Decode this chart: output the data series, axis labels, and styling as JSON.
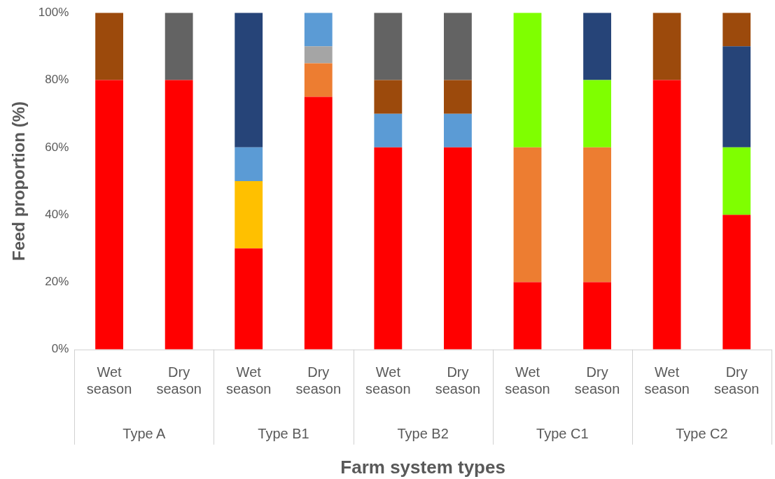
{
  "chart_data": {
    "type": "bar",
    "stacked": true,
    "xlabel": "Farm system types",
    "ylabel": "Feed proportion (%)",
    "categories": [
      "Wet season",
      "Dry season",
      "Wet season",
      "Dry season",
      "Wet season",
      "Dry season",
      "Wet season",
      "Dry season",
      "Wet season",
      "Dry season"
    ],
    "annotations": [
      "Type A",
      "Type B1",
      "Type B2",
      "Type C1",
      "Type C2"
    ],
    "series": [
      {
        "color": "#ff0000",
        "values": [
          80,
          80,
          30,
          75,
          60,
          60,
          20,
          20,
          80,
          40
        ]
      },
      {
        "color": "#ed7d31",
        "values": [
          null,
          null,
          null,
          10,
          null,
          null,
          40,
          40,
          null,
          null
        ]
      },
      {
        "color": "#ffc000",
        "values": [
          null,
          null,
          20,
          null,
          null,
          null,
          null,
          null,
          null,
          null
        ]
      },
      {
        "color": "#a5a5a5",
        "values": [
          null,
          null,
          null,
          5,
          null,
          null,
          null,
          null,
          null,
          null
        ]
      },
      {
        "color": "#5b9bd5",
        "values": [
          null,
          null,
          10,
          10,
          10,
          10,
          null,
          null,
          null,
          null
        ]
      },
      {
        "color": "#7fff00",
        "values": [
          null,
          null,
          null,
          null,
          null,
          null,
          40,
          20,
          null,
          20
        ]
      },
      {
        "color": "#264478",
        "values": [
          null,
          null,
          40,
          null,
          null,
          null,
          null,
          20,
          null,
          30
        ]
      },
      {
        "color": "#9c4a0c",
        "values": [
          20,
          null,
          null,
          null,
          10,
          10,
          null,
          null,
          20,
          10
        ]
      },
      {
        "color": "#636363",
        "values": [
          null,
          20,
          null,
          null,
          20,
          20,
          null,
          null,
          null,
          null
        ]
      }
    ],
    "ylim": [
      0,
      100
    ],
    "yticks": [
      {
        "value": 0,
        "label": "0%"
      },
      {
        "value": 20,
        "label": "20%"
      },
      {
        "value": 40,
        "label": "40%"
      },
      {
        "value": 60,
        "label": "60%"
      },
      {
        "value": 80,
        "label": "80%"
      },
      {
        "value": 100,
        "label": "100%"
      }
    ],
    "grid": false,
    "legend": false
  }
}
